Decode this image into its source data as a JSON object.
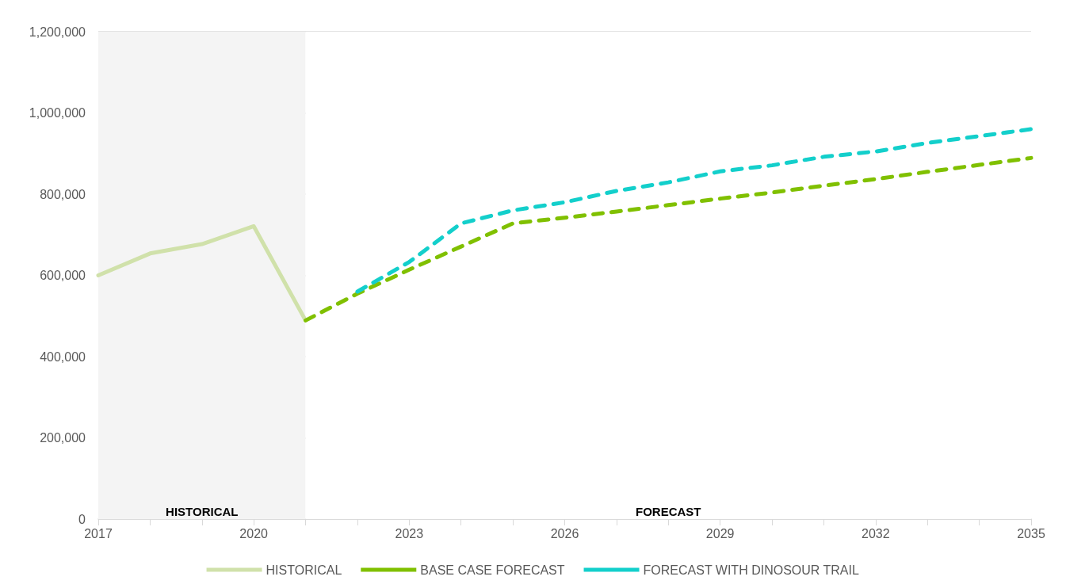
{
  "chart_data": {
    "type": "line",
    "xlim": [
      2017,
      2035
    ],
    "xticks": [
      2017,
      {
        "value": 2018,
        "label": null
      },
      {
        "value": 2019,
        "label": null
      },
      2020,
      {
        "value": 2021,
        "label": null
      },
      {
        "value": 2022,
        "label": null
      },
      2023,
      {
        "value": 2024,
        "label": null
      },
      {
        "value": 2025,
        "label": null
      },
      2026,
      {
        "value": 2027,
        "label": null
      },
      {
        "value": 2028,
        "label": null
      },
      2029,
      {
        "value": 2030,
        "label": null
      },
      {
        "value": 2031,
        "label": null
      },
      2032,
      {
        "value": 2033,
        "label": null
      },
      {
        "value": 2034,
        "label": null
      },
      2035
    ],
    "ylim": [
      0,
      1200000
    ],
    "yticks": [
      0,
      {
        "value": 200000,
        "label": "200,000"
      },
      {
        "value": 400000,
        "label": "400,000"
      },
      {
        "value": 600000,
        "label": "600,000"
      },
      {
        "value": 800000,
        "label": "800,000"
      },
      {
        "value": 1000000,
        "label": "1,000,000"
      },
      {
        "value": 1200000,
        "label": "1,200,000"
      }
    ],
    "series": [
      {
        "name": "HISTORICAL",
        "color": "#d0e1aa",
        "line_style": "solid",
        "x": [
          2017,
          2018,
          2019,
          2020,
          2021
        ],
        "values": [
          600000,
          654000,
          677000,
          721000,
          489000
        ]
      },
      {
        "name": "BASE CASE FORECAST",
        "color": "#80c000",
        "line_style": "dashed",
        "x": [
          2021,
          2022,
          2023,
          2024,
          2025,
          2026,
          2027,
          2028,
          2029,
          2030,
          2031,
          2032,
          2033,
          2034,
          2035
        ],
        "values": [
          489000,
          555000,
          614000,
          671000,
          728000,
          742000,
          757000,
          773000,
          789000,
          804000,
          821000,
          837000,
          855000,
          872000,
          889000
        ]
      },
      {
        "name": "FORECAST WITH DINOSOUR TRAIL",
        "color": "#13cfcb",
        "line_style": "dashed",
        "x": [
          2022,
          2023,
          2024,
          2025,
          2026,
          2027,
          2028,
          2029,
          2030,
          2031,
          2032,
          2033,
          2034,
          2035
        ],
        "values": [
          560000,
          633000,
          728000,
          760000,
          780000,
          808000,
          829000,
          856000,
          871000,
          892000,
          905000,
          926000,
          943000,
          960000
        ]
      }
    ],
    "bands": [
      {
        "axis": "x",
        "from": 2017,
        "to": 2021,
        "label": "HISTORICAL",
        "color": "#f4f4f4"
      },
      {
        "axis": "x",
        "from": 2021,
        "to": 2035,
        "label": "FORECAST",
        "color": "#ffffff"
      }
    ],
    "grid": "y",
    "legend": "bottom",
    "marker": "none"
  }
}
